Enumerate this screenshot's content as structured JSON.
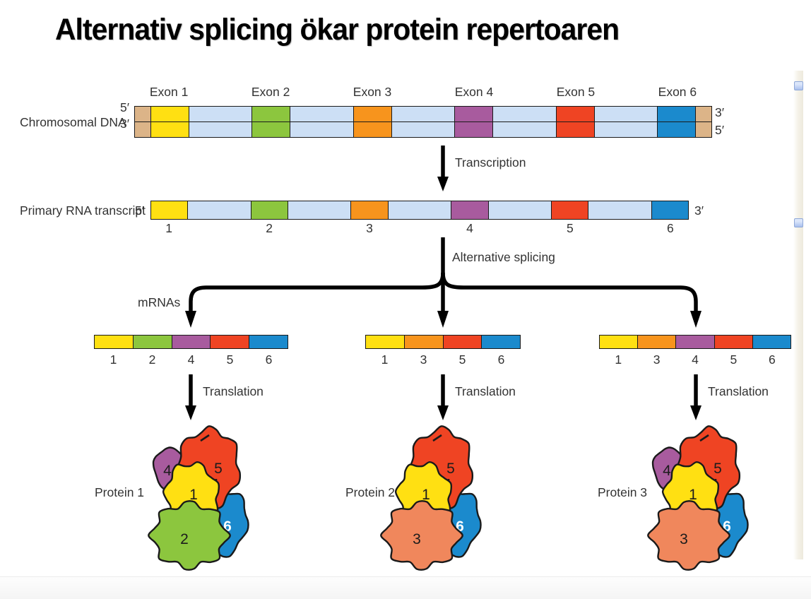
{
  "title": "Alternativ splicing ökar protein repertoaren",
  "colors": {
    "exon1": "#FFE012",
    "exon2": "#8CC63E",
    "exon3": "#F7941D",
    "exon4": "#A85B9E",
    "exon5": "#EF4423",
    "exon6": "#1B8ACD",
    "intron": "#CCDFF5",
    "cap": "#DCB488",
    "salmon": "#F0875C",
    "outline": "#1a1a1a",
    "marker": "#b8cdf2"
  },
  "dna": {
    "label": "Chromosomal DNA",
    "left_top": "5′",
    "left_bottom": "3′",
    "right_top": "3′",
    "right_bottom": "5′",
    "exon_labels": [
      "Exon 1",
      "Exon 2",
      "Exon 3",
      "Exon 4",
      "Exon 5",
      "Exon 6"
    ]
  },
  "transcription_label": "Transcription",
  "rna": {
    "label": "Primary RNA transcript",
    "five_prime": "5′",
    "three_prime": "3′",
    "exon_numbers": [
      "1",
      "2",
      "3",
      "4",
      "5",
      "6"
    ]
  },
  "splicing_label": "Alternative splicing",
  "mrnas_label": "mRNAs",
  "translation_label": "Translation",
  "mrnas": [
    {
      "exons": [
        1,
        2,
        4,
        5,
        6
      ]
    },
    {
      "exons": [
        1,
        3,
        5,
        6
      ]
    },
    {
      "exons": [
        1,
        3,
        4,
        5,
        6
      ]
    }
  ],
  "proteins": [
    {
      "name": "Protein 1",
      "domains": [
        {
          "part": "purple",
          "label": "4"
        },
        {
          "part": "blue",
          "label": "6"
        },
        {
          "part": "red",
          "label": "5"
        },
        {
          "part": "yellow",
          "label": "1"
        },
        {
          "part": "bottom",
          "label": "2",
          "color_key": "exon2"
        }
      ]
    },
    {
      "name": "Protein 2",
      "domains": [
        {
          "part": "blue",
          "label": "6"
        },
        {
          "part": "red",
          "label": "5"
        },
        {
          "part": "yellow",
          "label": "1"
        },
        {
          "part": "bottom",
          "label": "3",
          "color_key": "salmon"
        }
      ]
    },
    {
      "name": "Protein 3",
      "domains": [
        {
          "part": "purple",
          "label": "4"
        },
        {
          "part": "blue",
          "label": "6"
        },
        {
          "part": "red",
          "label": "5"
        },
        {
          "part": "yellow",
          "label": "1"
        },
        {
          "part": "bottom",
          "label": "3",
          "color_key": "salmon"
        }
      ]
    }
  ]
}
